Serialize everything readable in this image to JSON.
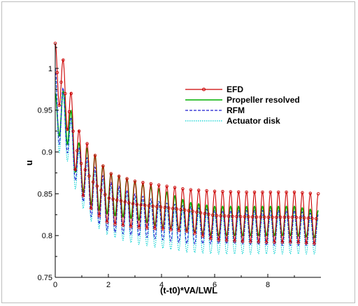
{
  "chart_data": {
    "type": "line",
    "title": "",
    "xlabel": "(t-t0)*VA/LWL",
    "ylabel": "u",
    "xlim": [
      0,
      10
    ],
    "ylim": [
      0.75,
      1.03
    ],
    "x_ticks": [
      0,
      2,
      4,
      6,
      8
    ],
    "x_tick_labels": [
      "0",
      "2",
      "4",
      "6",
      "8"
    ],
    "y_ticks": [
      0.75,
      0.8,
      0.85,
      0.9,
      0.95,
      1.0
    ],
    "y_tick_labels": [
      "0.75",
      "0.8",
      "0.85",
      "0.9",
      "0.95",
      "1"
    ],
    "grid": false,
    "legend_position": "upper-right",
    "oscillation_period": 0.3,
    "series": [
      {
        "name": "EFD",
        "color": "#cc0000",
        "style": "solid",
        "marker": "circle",
        "envelope_x": [
          0.0,
          0.1,
          0.4,
          0.9,
          1.4,
          2.0,
          3.0,
          4.0,
          5.0,
          6.0,
          7.0,
          8.0,
          9.0,
          9.9
        ],
        "upper": [
          1.03,
          1.03,
          1.0,
          0.925,
          0.9,
          0.875,
          0.865,
          0.86,
          0.855,
          0.853,
          0.852,
          0.852,
          0.852,
          0.85
        ],
        "lower": [
          0.96,
          0.96,
          0.935,
          0.855,
          0.83,
          0.815,
          0.81,
          0.808,
          0.805,
          0.795,
          0.793,
          0.792,
          0.792,
          0.79
        ]
      },
      {
        "name": "Propeller resolved",
        "color": "#00b000",
        "style": "solid",
        "marker": "none",
        "envelope_x": [
          0.0,
          0.1,
          0.4,
          0.9,
          1.4,
          2.0,
          3.0,
          4.0,
          5.0,
          6.0,
          7.0,
          8.0,
          9.0,
          9.9
        ],
        "upper": [
          0.97,
          0.97,
          0.975,
          0.91,
          0.9,
          0.875,
          0.865,
          0.855,
          0.84,
          0.835,
          0.835,
          0.835,
          0.835,
          0.83
        ],
        "lower": [
          0.92,
          0.92,
          0.915,
          0.86,
          0.835,
          0.825,
          0.82,
          0.81,
          0.805,
          0.8,
          0.8,
          0.8,
          0.8,
          0.797
        ]
      },
      {
        "name": "RFM",
        "color": "#1f1fd0",
        "style": "dashed",
        "marker": "none",
        "envelope_x": [
          0.0,
          0.1,
          0.4,
          0.9,
          1.4,
          2.0,
          3.0,
          4.0,
          5.0,
          6.0,
          7.0,
          8.0,
          9.0,
          9.9
        ],
        "upper": [
          1.0,
          1.0,
          0.965,
          0.905,
          0.885,
          0.865,
          0.85,
          0.84,
          0.835,
          0.83,
          0.83,
          0.83,
          0.83,
          0.825
        ],
        "lower": [
          0.91,
          0.91,
          0.905,
          0.85,
          0.82,
          0.805,
          0.8,
          0.795,
          0.79,
          0.79,
          0.79,
          0.788,
          0.788,
          0.788
        ]
      },
      {
        "name": "Actuator disk",
        "color": "#00d0d0",
        "style": "dotted",
        "marker": "none",
        "envelope_x": [
          0.0,
          0.1,
          0.4,
          0.9,
          1.4,
          2.0,
          3.0,
          4.0,
          5.0,
          6.0,
          7.0,
          8.0,
          9.0,
          9.9
        ],
        "upper": [
          0.99,
          0.99,
          0.96,
          0.9,
          0.88,
          0.86,
          0.845,
          0.835,
          0.83,
          0.825,
          0.825,
          0.825,
          0.825,
          0.82
        ],
        "lower": [
          0.9,
          0.9,
          0.895,
          0.84,
          0.815,
          0.8,
          0.79,
          0.785,
          0.78,
          0.778,
          0.778,
          0.778,
          0.778,
          0.778
        ]
      }
    ]
  }
}
